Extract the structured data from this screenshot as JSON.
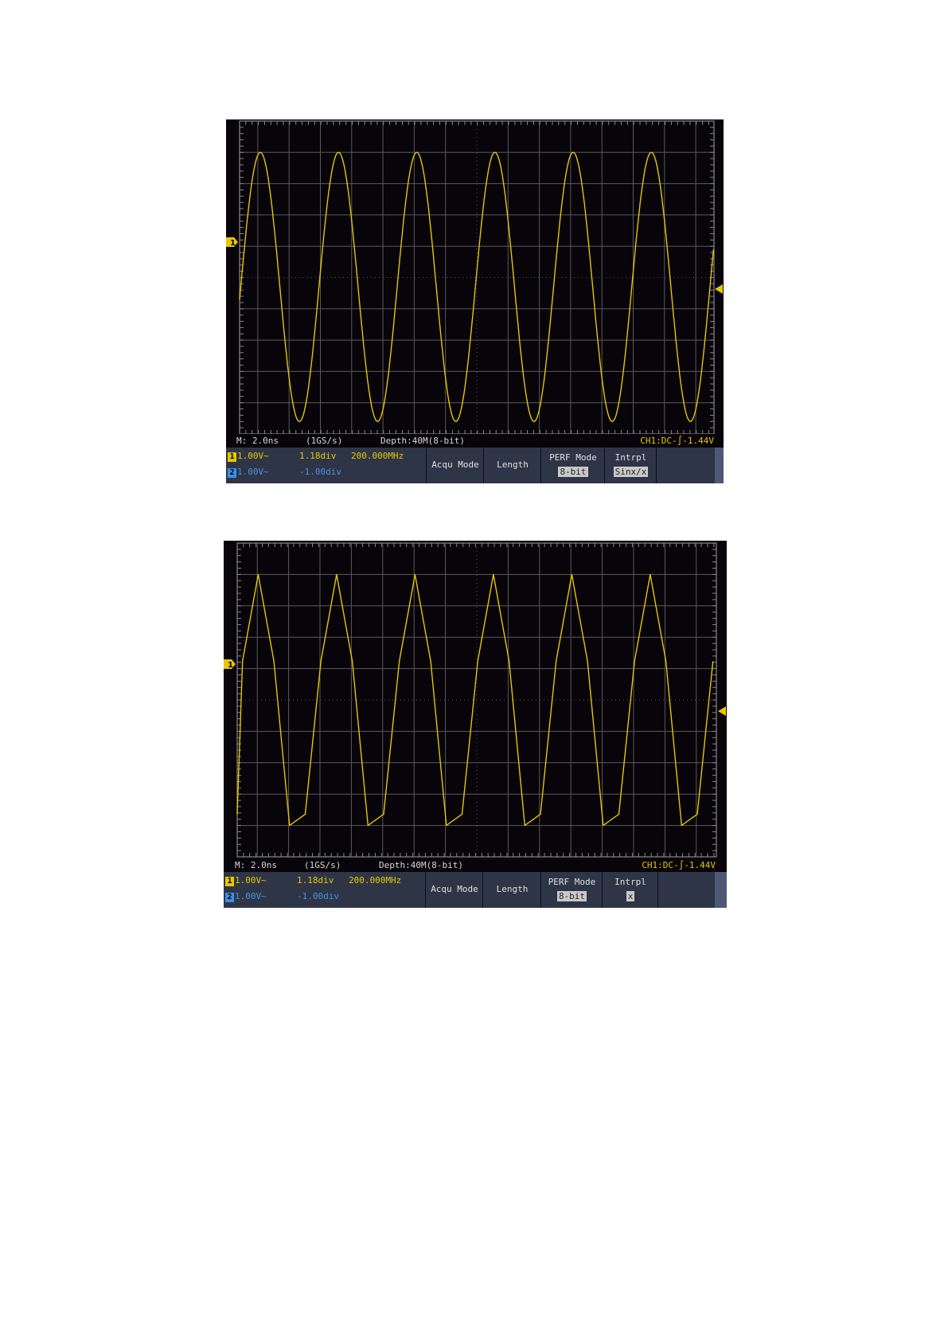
{
  "colors": {
    "ch1": "#e8c600",
    "ch2": "#3d8fe8",
    "background": "#07040a",
    "grid": "#5a5a5a",
    "menu_bar": "#2e3546"
  },
  "screens": [
    {
      "status": {
        "timebase": "M: 2.0ns",
        "sample_rate": "(1GS/s)",
        "depth": "Depth:40M(8-bit)",
        "trigger": "CH1:DC-∫-1.44V"
      },
      "ch1": {
        "badge": "1",
        "scale": "1.00V~",
        "position": "1.18div",
        "frequency": "200.000MHz"
      },
      "ch2": {
        "badge": "2",
        "scale": "1.00V~",
        "position": "-1.00div"
      },
      "menu": {
        "acqu_mode": "Acqu Mode",
        "length": "Length",
        "perf_mode": "PERF Mode",
        "perf_value": "8-bit",
        "intrpl": "Intrpl",
        "intrpl_value": "Sinx/x"
      },
      "ch1_marker": "1"
    },
    {
      "status": {
        "timebase": "M: 2.0ns",
        "sample_rate": "(1GS/s)",
        "depth": "Depth:40M(8-bit)",
        "trigger": "CH1:DC-∫-1.44V"
      },
      "ch1": {
        "badge": "1",
        "scale": "1.00V~",
        "position": "1.18div",
        "frequency": "200.000MHz"
      },
      "ch2": {
        "badge": "2",
        "scale": "1.00V~",
        "position": "-1.00div"
      },
      "menu": {
        "acqu_mode": "Acqu Mode",
        "length": "Length",
        "perf_mode": "PERF Mode",
        "perf_value": "8-bit",
        "intrpl": "Intrpl",
        "intrpl_value": "x"
      },
      "ch1_marker": "1"
    }
  ],
  "chart_data": [
    {
      "type": "line",
      "series": [
        {
          "channel": "CH1",
          "waveform": "sine",
          "frequency_mhz": 200,
          "period_ns": 5,
          "peak_div": 4.0,
          "trough_div": -4.6
        }
      ],
      "time_per_div_ns": 2.0,
      "volts_per_div": 1.0,
      "interpolation": "Sinx/x",
      "grid": true
    },
    {
      "type": "line",
      "series": [
        {
          "channel": "CH1",
          "waveform": "sine sampled (linear segments)",
          "frequency_mhz": 200,
          "period_ns": 5,
          "sample_interval_ns": 1,
          "peak_div": 4.0,
          "trough_div": -4.0
        }
      ],
      "time_per_div_ns": 2.0,
      "volts_per_div": 1.0,
      "interpolation": "x",
      "grid": true
    }
  ]
}
